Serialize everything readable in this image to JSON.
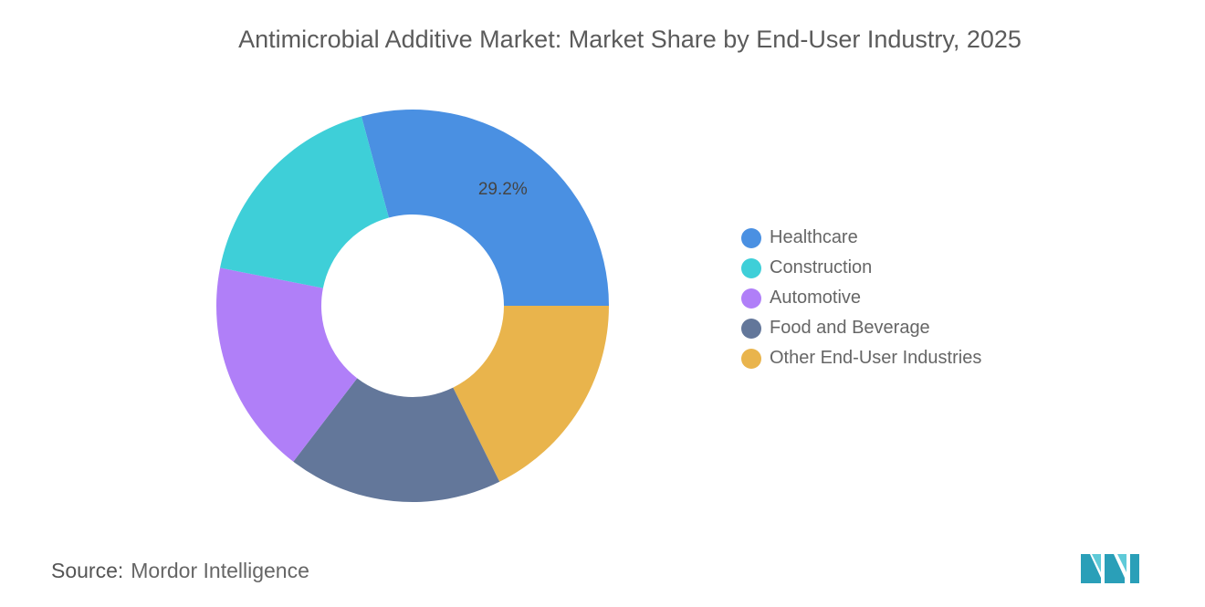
{
  "chart_data": {
    "type": "pie",
    "title": "Antimicrobial Additive Market: Market Share by End-User Industry, 2025",
    "donut": true,
    "legend_position": "right",
    "categories": [
      "Healthcare",
      "Construction",
      "Automotive",
      "Food and Beverage",
      "Other End-User Industries"
    ],
    "values": [
      29.2,
      17.7,
      17.7,
      17.7,
      17.7
    ],
    "colors": [
      "#4a90e2",
      "#3ecfd8",
      "#b07ff8",
      "#63779a",
      "#e9b44c"
    ],
    "data_labels": [
      {
        "category": "Healthcare",
        "text": "29.2%"
      }
    ]
  },
  "source": {
    "label": "Source:",
    "value": "Mordor Intelligence"
  }
}
